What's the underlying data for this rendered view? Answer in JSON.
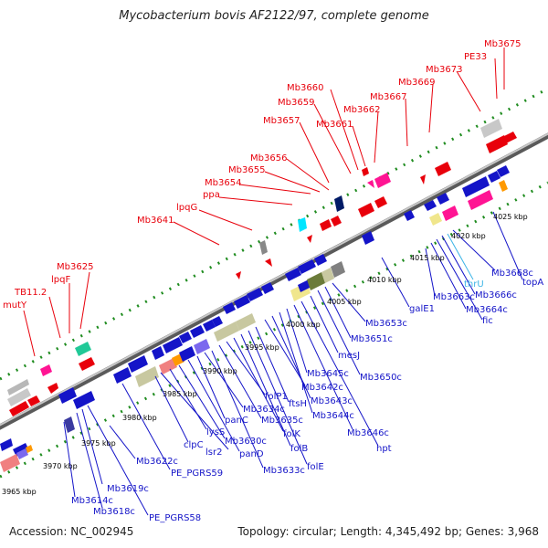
{
  "title": "Mycobacterium bovis AF2122/97, complete genome",
  "footer": {
    "accession": "Accession: NC_002945",
    "topology": "Topology: circular; Length: 4,345,492 bp; Genes: 3,968"
  },
  "colors": {
    "forward_label": "#e8000b",
    "reverse_label": "#1414c8",
    "rna_label": "#3cb4e6",
    "backbone": "#888888",
    "tick_dots": "#1f8c1f"
  },
  "scale_labels": [
    "3965 kbp",
    "3970 kbp",
    "3975 kbp",
    "3980 kbp",
    "3985 kbp",
    "3990 kbp",
    "3995 kbp",
    "4000 kbp",
    "4005 kbp",
    "4010 kbp",
    "4015 kbp",
    "4020 kbp",
    "4025 kbp"
  ],
  "forward_genes": [
    "mutY",
    "TB11.2",
    "lpqF",
    "Mb3625",
    "Mb3641",
    "lpqG",
    "ppa",
    "Mb3654",
    "Mb3655",
    "Mb3656",
    "Mb3657",
    "Mb3659",
    "Mb3660",
    "Mb3661",
    "Mb3662",
    "Mb3667",
    "Mb3669",
    "Mb3673",
    "PE33",
    "Mb3675"
  ],
  "reverse_genes": [
    "Mb3614c",
    "Mb3618c",
    "Mb3619c",
    "PE_PGRS58",
    "Mb3622c",
    "PE_PGRS59",
    "clpC",
    "lsr2",
    "lysS",
    "Mb3630c",
    "panD",
    "panC",
    "Mb3634c",
    "Mb3633c",
    "Mb3635c",
    "folP1",
    "folK",
    "folB",
    "folE",
    "ftsH",
    "Mb3642c",
    "Mb3643c",
    "Mb3644c",
    "Mb3645c",
    "Mb3646c",
    "hpt",
    "mesJ",
    "Mb3650c",
    "Mb3651c",
    "Mb3653c",
    "galE1",
    "Mb3663c",
    "Mb3664c",
    "fic",
    "Mb3666c",
    "Mb3668c",
    "topA"
  ],
  "rna_genes": [
    "thrU"
  ]
}
